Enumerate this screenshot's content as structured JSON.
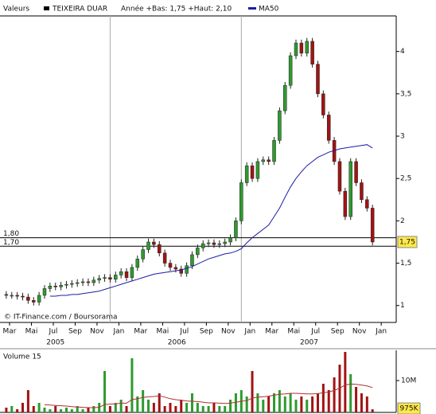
{
  "chart_data": [
    {
      "type": "candlestick",
      "legend_title": "Valeurs",
      "title": "TEIXEIRA DUAR",
      "subtitle": "Année +Bas: 1,75 +Haut: 2,10",
      "credit": "© IT-Finance.com / Boursorama",
      "up_color": "#2f9a2f",
      "down_color": "#a11313",
      "x": [
        -0.3,
        0.2,
        0.7,
        1.2,
        1.7,
        2.2,
        2.7,
        3.2,
        3.7,
        4.2,
        4.7,
        5.2,
        5.7,
        6.2,
        6.7,
        7.2,
        7.7,
        8.2,
        8.7,
        9.2,
        9.7,
        10.2,
        10.7,
        11.2,
        11.7,
        12.2,
        12.7,
        13.2,
        13.7,
        14.2,
        14.7,
        15.2,
        15.7,
        16.2,
        16.7,
        17.2,
        17.7,
        18.2,
        18.7,
        19.2,
        19.7,
        20.2,
        20.7,
        21.2,
        21.7,
        22.2,
        22.7,
        23.2,
        23.7,
        24.2,
        24.7,
        25.2,
        25.7,
        26.2,
        26.7,
        27.2,
        27.7,
        28.2,
        28.7,
        29.2,
        29.7,
        30.2,
        30.7,
        31.2,
        31.7,
        32.2,
        32.7,
        33.2
      ],
      "open": [
        1.13,
        1.12,
        1.12,
        1.11,
        1.1,
        1.06,
        1.04,
        1.12,
        1.2,
        1.23,
        1.22,
        1.24,
        1.25,
        1.26,
        1.27,
        1.28,
        1.27,
        1.3,
        1.32,
        1.33,
        1.31,
        1.36,
        1.4,
        1.33,
        1.45,
        1.55,
        1.66,
        1.75,
        1.72,
        1.62,
        1.5,
        1.45,
        1.43,
        1.38,
        1.47,
        1.6,
        1.68,
        1.73,
        1.74,
        1.72,
        1.73,
        1.75,
        1.8,
        2.0,
        2.45,
        2.65,
        2.5,
        2.7,
        2.72,
        2.7,
        2.95,
        3.3,
        3.6,
        3.95,
        4.1,
        3.98,
        4.12,
        3.85,
        3.5,
        3.25,
        2.95,
        2.7,
        2.35,
        2.05,
        2.7,
        2.45,
        2.25,
        2.15
      ],
      "high": [
        1.17,
        1.16,
        1.16,
        1.15,
        1.14,
        1.1,
        1.16,
        1.24,
        1.27,
        1.27,
        1.28,
        1.29,
        1.3,
        1.31,
        1.32,
        1.32,
        1.34,
        1.36,
        1.37,
        1.37,
        1.4,
        1.44,
        1.44,
        1.49,
        1.59,
        1.7,
        1.79,
        1.79,
        1.76,
        1.66,
        1.54,
        1.49,
        1.47,
        1.51,
        1.64,
        1.72,
        1.77,
        1.78,
        1.78,
        1.77,
        1.79,
        1.84,
        2.04,
        2.49,
        2.69,
        2.69,
        2.74,
        2.76,
        2.76,
        2.99,
        3.34,
        3.64,
        3.99,
        4.14,
        4.14,
        4.16,
        4.16,
        3.89,
        3.54,
        3.29,
        2.99,
        2.74,
        2.39,
        2.74,
        2.74,
        2.49,
        2.29,
        2.19
      ],
      "low": [
        1.08,
        1.08,
        1.07,
        1.06,
        1.02,
        1.0,
        1.0,
        1.08,
        1.16,
        1.18,
        1.18,
        1.2,
        1.21,
        1.22,
        1.23,
        1.23,
        1.23,
        1.26,
        1.28,
        1.27,
        1.27,
        1.32,
        1.29,
        1.29,
        1.41,
        1.51,
        1.62,
        1.68,
        1.58,
        1.46,
        1.41,
        1.39,
        1.34,
        1.34,
        1.43,
        1.56,
        1.64,
        1.69,
        1.68,
        1.68,
        1.69,
        1.71,
        1.76,
        1.96,
        2.41,
        2.46,
        2.46,
        2.66,
        2.66,
        2.66,
        2.91,
        3.26,
        3.56,
        3.91,
        3.94,
        3.94,
        3.81,
        3.46,
        3.21,
        2.91,
        2.66,
        2.31,
        2.01,
        2.01,
        2.41,
        2.21,
        2.11,
        1.71
      ],
      "close": [
        1.12,
        1.12,
        1.11,
        1.1,
        1.06,
        1.04,
        1.12,
        1.2,
        1.23,
        1.22,
        1.24,
        1.25,
        1.26,
        1.27,
        1.28,
        1.27,
        1.3,
        1.32,
        1.33,
        1.31,
        1.36,
        1.4,
        1.33,
        1.45,
        1.55,
        1.66,
        1.75,
        1.72,
        1.62,
        1.5,
        1.45,
        1.43,
        1.38,
        1.47,
        1.6,
        1.68,
        1.73,
        1.74,
        1.72,
        1.73,
        1.75,
        1.8,
        2.0,
        2.45,
        2.65,
        2.5,
        2.7,
        2.72,
        2.7,
        2.95,
        3.3,
        3.6,
        3.95,
        4.1,
        3.98,
        4.12,
        3.85,
        3.5,
        3.25,
        2.95,
        2.7,
        2.35,
        2.05,
        2.7,
        2.45,
        2.25,
        2.15,
        1.75
      ],
      "series": [
        {
          "name": "MA50",
          "color": "#1c1ca6",
          "values": [
            null,
            null,
            null,
            null,
            null,
            null,
            null,
            null,
            1.11,
            1.11,
            1.12,
            1.12,
            1.13,
            1.13,
            1.14,
            1.15,
            1.16,
            1.17,
            1.19,
            1.21,
            1.23,
            1.25,
            1.27,
            1.29,
            1.31,
            1.33,
            1.35,
            1.37,
            1.38,
            1.39,
            1.4,
            1.41,
            1.42,
            1.44,
            1.46,
            1.49,
            1.52,
            1.55,
            1.57,
            1.59,
            1.61,
            1.62,
            1.64,
            1.67,
            1.74,
            1.8,
            1.85,
            1.9,
            1.95,
            2.05,
            2.15,
            2.28,
            2.4,
            2.5,
            2.58,
            2.65,
            2.7,
            2.75,
            2.78,
            2.81,
            2.83,
            2.85,
            2.86,
            2.87,
            2.88,
            2.89,
            2.9,
            2.86
          ]
        }
      ],
      "xlim": [
        -0.73,
        35.37
      ],
      "xticks": [
        {
          "value": 0,
          "label": "Mar"
        },
        {
          "value": 2,
          "label": "Mai"
        },
        {
          "value": 4,
          "label": "Jul"
        },
        {
          "value": 6,
          "label": "Sep"
        },
        {
          "value": 8,
          "label": "Nov"
        },
        {
          "value": 10,
          "label": "Jan"
        },
        {
          "value": 12,
          "label": "Mar"
        },
        {
          "value": 14,
          "label": "Mai"
        },
        {
          "value": 16,
          "label": "Jul"
        },
        {
          "value": 18,
          "label": "Sep"
        },
        {
          "value": 20,
          "label": "Nov"
        },
        {
          "value": 22,
          "label": "Jan"
        },
        {
          "value": 24,
          "label": "Mar"
        },
        {
          "value": 26,
          "label": "Mai"
        },
        {
          "value": 28,
          "label": "Jul"
        },
        {
          "value": 30,
          "label": "Sep"
        },
        {
          "value": 32,
          "label": "Nov"
        },
        {
          "value": 34,
          "label": "Jan"
        }
      ],
      "year_labels": [
        {
          "value": 4.2,
          "label": "2005"
        },
        {
          "value": 15.3,
          "label": "2006"
        },
        {
          "value": 27.4,
          "label": "2007"
        }
      ],
      "year_boundaries": [
        9.2,
        21.2
      ],
      "ylim": [
        0.8,
        4.42
      ],
      "yticks": [
        1,
        {
          "value": 1.5,
          "label": "1,5"
        },
        2,
        {
          "value": 2.5,
          "label": "2,5"
        },
        3,
        {
          "value": 3.5,
          "label": "3,5"
        },
        4
      ],
      "reference_lines": [
        {
          "value": 1.8,
          "label": "1,80"
        },
        {
          "value": 1.7,
          "label": "1,70"
        }
      ],
      "last_price": {
        "value": 1.75,
        "label": "1,75"
      }
    },
    {
      "type": "bar",
      "title": "Volume 15",
      "values": [
        1500000,
        2000000,
        1000000,
        3000000,
        7000000,
        2000000,
        3000000,
        1500000,
        1000000,
        2000000,
        1000000,
        1500000,
        1000000,
        2000000,
        1000000,
        1500000,
        2000000,
        3000000,
        13000000,
        2000000,
        3000000,
        4000000,
        2000000,
        17000000,
        5000000,
        7000000,
        4000000,
        3000000,
        6000000,
        2000000,
        3000000,
        2000000,
        4000000,
        3000000,
        6000000,
        3000000,
        2000000,
        2000000,
        3000000,
        2000000,
        2000000,
        4000000,
        6000000,
        7000000,
        5000000,
        13000000,
        6000000,
        4000000,
        5000000,
        6000000,
        7000000,
        5000000,
        6000000,
        4000000,
        5000000,
        4000000,
        5000000,
        6000000,
        9000000,
        7000000,
        11000000,
        15000000,
        19000000,
        12000000,
        8000000,
        6000000,
        5000000,
        975000
      ],
      "ma_color": "#b03030",
      "ma_values": [
        null,
        null,
        null,
        null,
        null,
        null,
        null,
        2400000,
        2300000,
        2200000,
        2100000,
        2000000,
        1800000,
        1700000,
        1600000,
        1500000,
        1500000,
        1600000,
        2500000,
        2600000,
        2700000,
        2900000,
        2900000,
        4000000,
        4300000,
        4700000,
        4900000,
        5000000,
        5200000,
        4800000,
        4300000,
        4000000,
        3800000,
        3600000,
        3500000,
        3400000,
        3200000,
        3000000,
        3000000,
        2900000,
        2800000,
        2900000,
        3200000,
        3500000,
        3700000,
        4500000,
        4800000,
        4900000,
        5100000,
        5400000,
        5700000,
        5800000,
        6000000,
        6000000,
        5900000,
        5800000,
        5800000,
        5900000,
        6200000,
        6400000,
        6900000,
        7600000,
        8600000,
        8900000,
        8800000,
        8600000,
        8300000,
        7800000
      ],
      "ylim": [
        0,
        19500000
      ],
      "yticks": [
        {
          "value": 10000000,
          "label": "10M"
        }
      ],
      "last_value": {
        "value": 975000,
        "label": "975K"
      }
    }
  ]
}
